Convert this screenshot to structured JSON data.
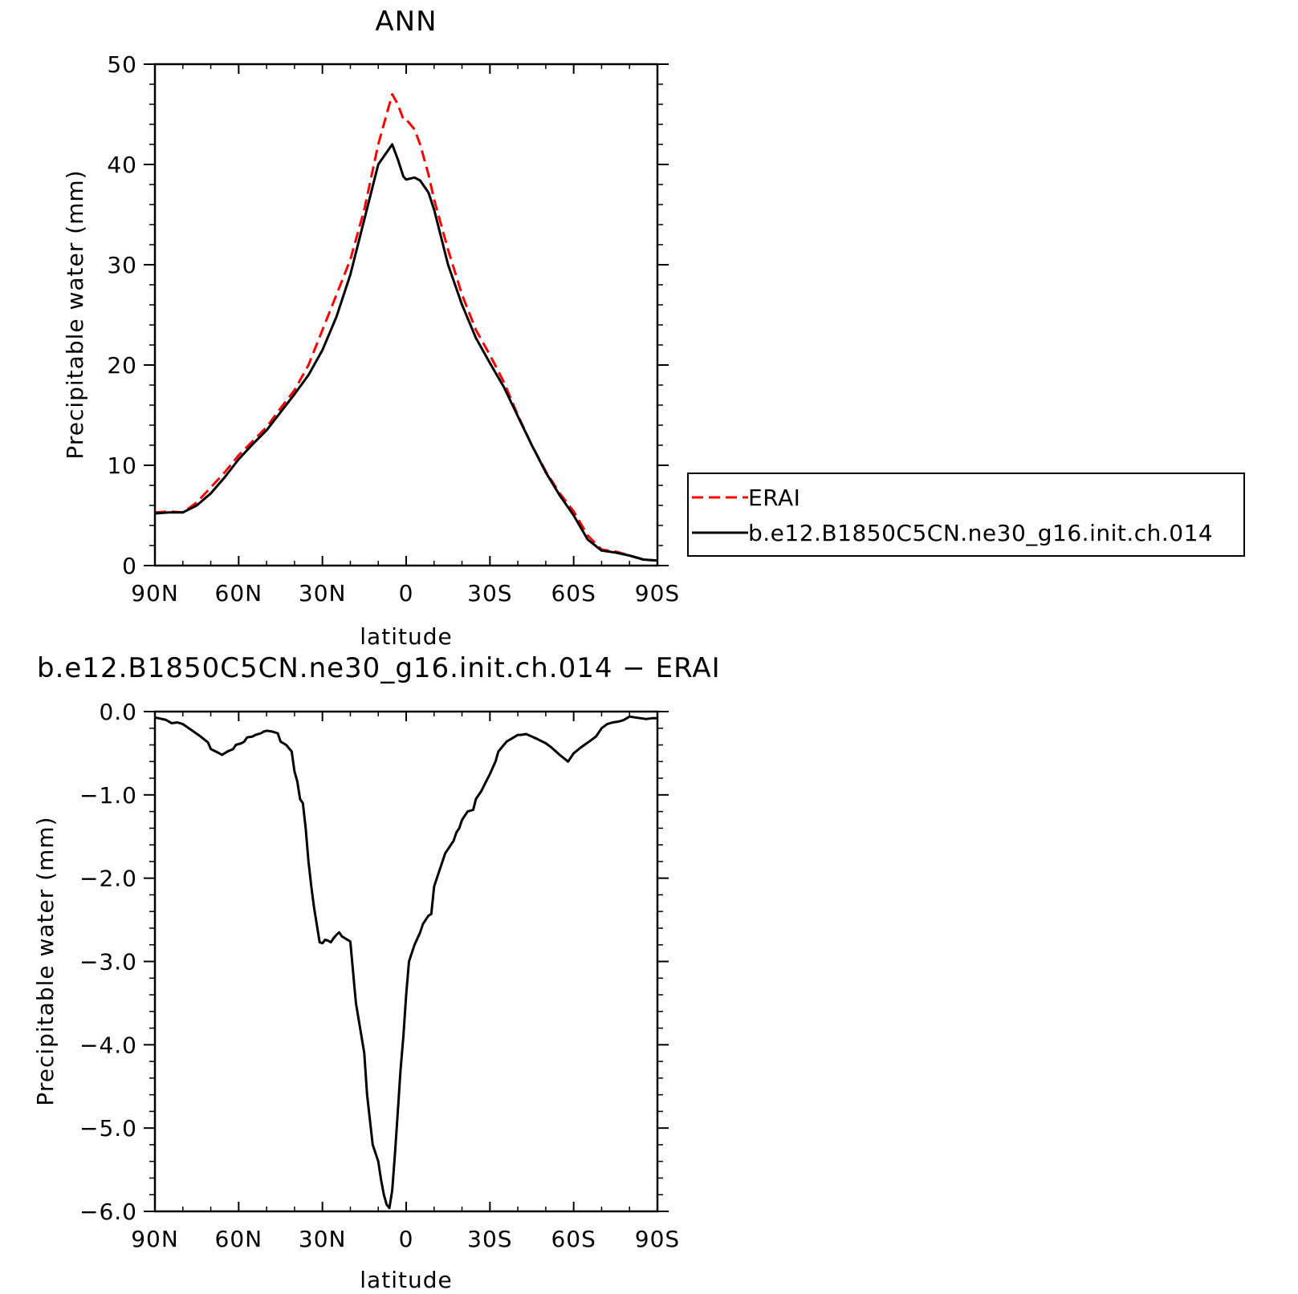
{
  "chart_data": [
    {
      "type": "line",
      "title": "ANN",
      "xlabel": "latitude",
      "ylabel": "Precipitable water (mm)",
      "xlim": [
        90,
        -90
      ],
      "ylim": [
        0,
        50
      ],
      "xticks": [
        90,
        60,
        30,
        0,
        -30,
        -60,
        -90
      ],
      "xtick_labels": [
        "90N",
        "60N",
        "30N",
        "0",
        "30S",
        "60S",
        "90S"
      ],
      "yticks": [
        0,
        10,
        20,
        30,
        40,
        50
      ],
      "ytick_labels": [
        "0",
        "10",
        "20",
        "30",
        "40",
        "50"
      ],
      "grid": false,
      "legend": "right",
      "series": [
        {
          "name": "ERAI",
          "color": "#ff0000",
          "dash": "dashed",
          "x": [
            90,
            85,
            80,
            75,
            70,
            65,
            60,
            55,
            50,
            45,
            40,
            35,
            30,
            25,
            20,
            15,
            10,
            5,
            3,
            1,
            0,
            -3,
            -5,
            -8,
            -10,
            -15,
            -20,
            -25,
            -30,
            -35,
            -40,
            -45,
            -50,
            -55,
            -60,
            -65,
            -70,
            -75,
            -80,
            -85,
            -90
          ],
          "y": [
            5.3,
            5.4,
            5.3,
            6.3,
            7.8,
            9.3,
            11.0,
            12.4,
            13.8,
            15.7,
            17.5,
            20.0,
            23.5,
            27.0,
            30.5,
            35.5,
            42.0,
            47.0,
            46.0,
            44.5,
            44.5,
            43.5,
            42.0,
            39.0,
            36.5,
            31.5,
            27.0,
            23.5,
            21.0,
            18.3,
            15.0,
            12.0,
            9.4,
            7.2,
            5.4,
            3.0,
            1.6,
            1.4,
            1.0,
            0.6,
            0.5
          ]
        },
        {
          "name": "b.e12.B1850C5CN.ne30_g16.init.ch.014",
          "color": "#000000",
          "dash": "solid",
          "x": [
            90,
            85,
            80,
            75,
            70,
            65,
            60,
            55,
            50,
            45,
            40,
            35,
            30,
            25,
            20,
            15,
            10,
            5,
            3,
            1,
            0,
            -3,
            -5,
            -8,
            -10,
            -15,
            -20,
            -25,
            -30,
            -35,
            -40,
            -45,
            -50,
            -55,
            -60,
            -65,
            -70,
            -75,
            -80,
            -85,
            -90
          ],
          "y": [
            5.2,
            5.3,
            5.3,
            6.0,
            7.2,
            8.8,
            10.6,
            12.1,
            13.5,
            15.3,
            17.1,
            19.0,
            21.5,
            24.8,
            29.0,
            34.5,
            40.0,
            42.0,
            40.5,
            38.8,
            38.5,
            38.7,
            38.4,
            37.2,
            35.5,
            30.0,
            26.0,
            22.7,
            20.2,
            17.8,
            14.9,
            12.0,
            9.3,
            7.0,
            5.0,
            2.6,
            1.5,
            1.3,
            1.0,
            0.6,
            0.5
          ]
        }
      ]
    },
    {
      "type": "line",
      "title": "b.e12.B1850C5CN.ne30_g16.init.ch.014 − ERAI",
      "xlabel": "latitude",
      "ylabel": "Precipitable water (mm)",
      "xlim": [
        90,
        -90
      ],
      "ylim": [
        -6.0,
        0.0
      ],
      "xticks": [
        90,
        60,
        30,
        0,
        -30,
        -60,
        -90
      ],
      "xtick_labels": [
        "90N",
        "60N",
        "30N",
        "0",
        "30S",
        "60S",
        "90S"
      ],
      "yticks": [
        0,
        -1,
        -2,
        -3,
        -4,
        -5,
        -6
      ],
      "ytick_labels": [
        "0.0",
        "−1.0",
        "−2.0",
        "−3.0",
        "−4.0",
        "−5.0",
        "−6.0"
      ],
      "grid": false,
      "series": [
        {
          "color": "#000000",
          "dash": "solid",
          "x": [
            90,
            86,
            84,
            82,
            80,
            77,
            74,
            71,
            70,
            67,
            66,
            64,
            62,
            61,
            59,
            58,
            57,
            55,
            54,
            52,
            51,
            50,
            48,
            46,
            45,
            43,
            41,
            40,
            39,
            38,
            37,
            36,
            35,
            34,
            33,
            31,
            30,
            29,
            28,
            27,
            26,
            25,
            24,
            23,
            22,
            20,
            18,
            15,
            14,
            13,
            12,
            10,
            9,
            8,
            7,
            6,
            5,
            4,
            3,
            2,
            1,
            0,
            -1,
            -3,
            -5,
            -6,
            -8,
            -9,
            -10,
            -12,
            -14,
            -15,
            -17,
            -18,
            -19,
            -20,
            -22,
            -24,
            -25,
            -27,
            -28,
            -30,
            -32,
            -33,
            -35,
            -36,
            -38,
            -40,
            -41,
            -43,
            -45,
            -47,
            -50,
            -52,
            -55,
            -58,
            -60,
            -63,
            -66,
            -68,
            -70,
            -72,
            -74,
            -76,
            -78,
            -80,
            -82,
            -84,
            -86,
            -88,
            -90
          ],
          "y": [
            -0.07,
            -0.1,
            -0.14,
            -0.13,
            -0.15,
            -0.22,
            -0.29,
            -0.37,
            -0.45,
            -0.5,
            -0.52,
            -0.48,
            -0.45,
            -0.4,
            -0.38,
            -0.36,
            -0.31,
            -0.3,
            -0.28,
            -0.26,
            -0.24,
            -0.23,
            -0.24,
            -0.26,
            -0.36,
            -0.4,
            -0.48,
            -0.72,
            -0.84,
            -1.05,
            -1.1,
            -1.4,
            -1.8,
            -2.1,
            -2.35,
            -2.77,
            -2.78,
            -2.74,
            -2.75,
            -2.77,
            -2.72,
            -2.68,
            -2.65,
            -2.7,
            -2.72,
            -2.76,
            -3.5,
            -4.1,
            -4.6,
            -4.9,
            -5.2,
            -5.4,
            -5.62,
            -5.8,
            -5.92,
            -5.96,
            -5.75,
            -5.3,
            -4.8,
            -4.3,
            -3.9,
            -3.4,
            -3.0,
            -2.8,
            -2.65,
            -2.55,
            -2.45,
            -2.43,
            -2.1,
            -1.9,
            -1.7,
            -1.65,
            -1.55,
            -1.45,
            -1.4,
            -1.3,
            -1.2,
            -1.18,
            -1.05,
            -0.95,
            -0.88,
            -0.75,
            -0.6,
            -0.48,
            -0.4,
            -0.36,
            -0.32,
            -0.28,
            -0.28,
            -0.27,
            -0.3,
            -0.33,
            -0.38,
            -0.43,
            -0.52,
            -0.6,
            -0.5,
            -0.42,
            -0.35,
            -0.3,
            -0.2,
            -0.15,
            -0.13,
            -0.12,
            -0.1,
            -0.06,
            -0.07,
            -0.08,
            -0.09,
            -0.08,
            -0.08
          ]
        }
      ]
    }
  ]
}
